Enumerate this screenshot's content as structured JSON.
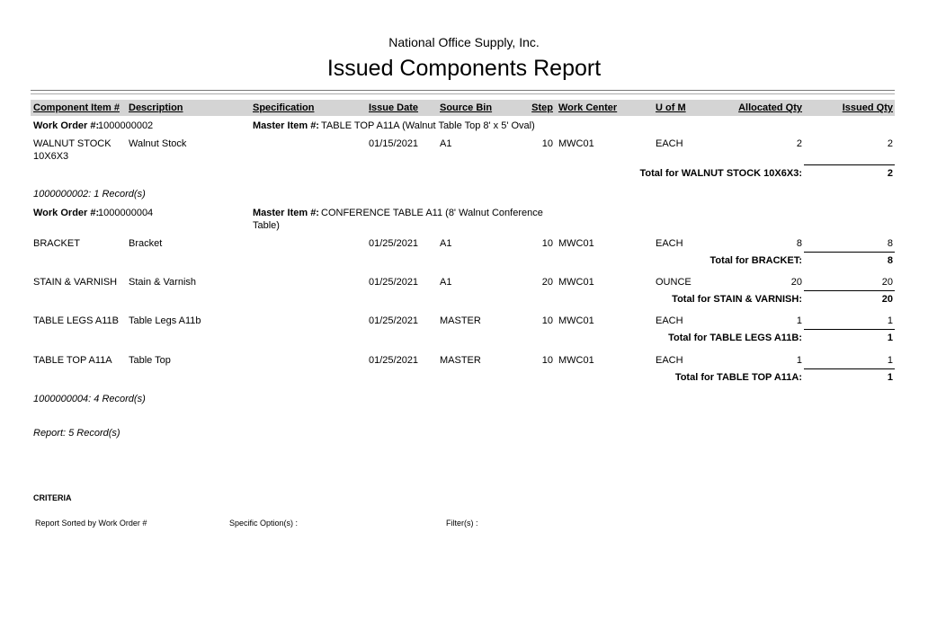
{
  "header": {
    "company": "National Office Supply, Inc.",
    "title": "Issued Components Report"
  },
  "columns": [
    "Component Item #",
    "Description",
    "Specification",
    "Issue Date",
    "Source Bin",
    "Step",
    "Work Center",
    "U of M",
    "Allocated Qty",
    "Issued Qty"
  ],
  "groups": [
    {
      "work_order_label": "Work Order #:",
      "work_order": "1000000002",
      "master_label": "Master Item #:",
      "master_item": "TABLE TOP A11A (Walnut Table Top 8' x 5' Oval)",
      "master_item_line2": "",
      "rows": [
        {
          "item": "WALNUT STOCK",
          "item_line2": "10X6X3",
          "description": "Walnut Stock",
          "specification": "",
          "issue_date": "01/15/2021",
          "source_bin": "A1",
          "step": "10",
          "work_center": "MWC01",
          "uom": "EACH",
          "allocated": "2",
          "issued": "2",
          "total_label": "Total for WALNUT STOCK 10X6X3:",
          "total": "2"
        }
      ],
      "records": "1000000002: 1 Record(s)"
    },
    {
      "work_order_label": "Work Order #:",
      "work_order": "1000000004",
      "master_label": "Master Item #:",
      "master_item": "CONFERENCE TABLE A11 (8' Walnut Conference",
      "master_item_line2": "Table)",
      "rows": [
        {
          "item": "BRACKET",
          "item_line2": "",
          "description": "Bracket",
          "specification": "",
          "issue_date": "01/25/2021",
          "source_bin": "A1",
          "step": "10",
          "work_center": "MWC01",
          "uom": "EACH",
          "allocated": "8",
          "issued": "8",
          "total_label": "Total for BRACKET:",
          "total": "8"
        },
        {
          "item": "STAIN & VARNISH",
          "item_line2": "",
          "description": "Stain & Varnish",
          "specification": "",
          "issue_date": "01/25/2021",
          "source_bin": "A1",
          "step": "20",
          "work_center": "MWC01",
          "uom": "OUNCE",
          "allocated": "20",
          "issued": "20",
          "total_label": "Total for STAIN & VARNISH:",
          "total": "20"
        },
        {
          "item": "TABLE LEGS A11B",
          "item_line2": "",
          "description": "Table Legs A11b",
          "specification": "",
          "issue_date": "01/25/2021",
          "source_bin": "MASTER",
          "step": "10",
          "work_center": "MWC01",
          "uom": "EACH",
          "allocated": "1",
          "issued": "1",
          "total_label": "Total for TABLE LEGS A11B:",
          "total": "1"
        },
        {
          "item": "TABLE TOP A11A",
          "item_line2": "",
          "description": "Table Top",
          "specification": "",
          "issue_date": "01/25/2021",
          "source_bin": "MASTER",
          "step": "10",
          "work_center": "MWC01",
          "uom": "EACH",
          "allocated": "1",
          "issued": "1",
          "total_label": "Total for TABLE TOP A11A:",
          "total": "1"
        }
      ],
      "records": "1000000004: 4 Record(s)"
    }
  ],
  "report_records": "Report: 5 Record(s)",
  "criteria": {
    "heading": "CRITERIA",
    "sorted": "Report Sorted by Work Order #",
    "options": "Specific Option(s) :",
    "filters": "Filter(s) :"
  }
}
